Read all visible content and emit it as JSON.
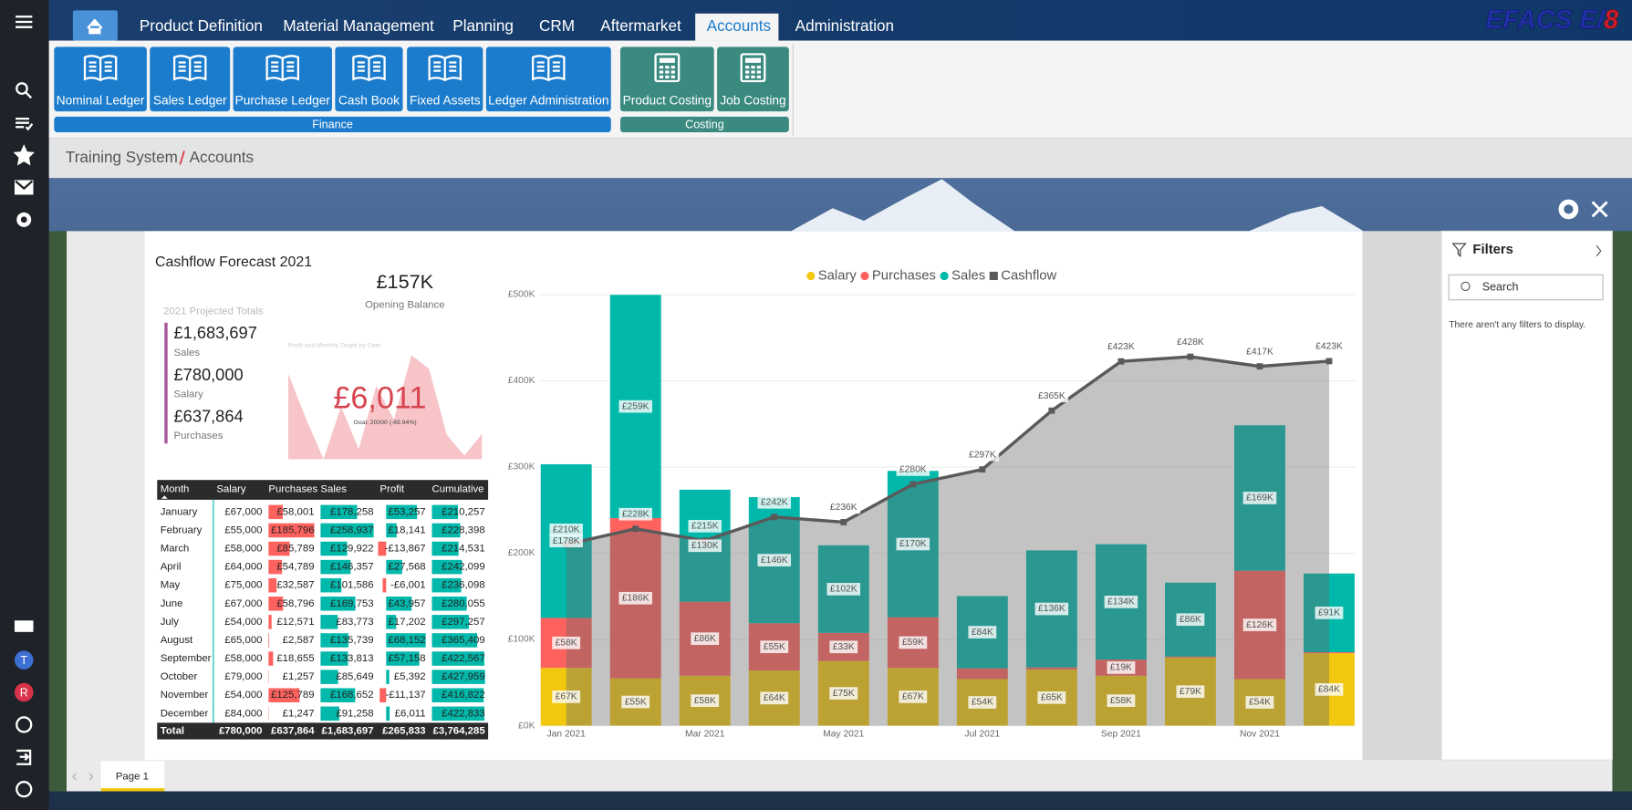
{
  "sidebar": {
    "badges": [
      "T",
      "R"
    ]
  },
  "nav": {
    "tabs": [
      "Product Definition",
      "Material Management",
      "Planning",
      "CRM",
      "Aftermarket",
      "Accounts",
      "Administration"
    ],
    "active_tab": 5
  },
  "logo": {
    "main": "EFACS E/",
    "accent": "8"
  },
  "ribbon": {
    "groups": [
      {
        "label": "Finance",
        "color": "#1b7bcc",
        "buttons": [
          "Nominal Ledger",
          "Sales Ledger",
          "Purchase Ledger",
          "Cash Book",
          "Fixed Assets",
          "Ledger Administration"
        ]
      },
      {
        "label": "Costing",
        "color": "#3a8a80",
        "buttons": [
          "Product Costing",
          "Job Costing"
        ]
      }
    ]
  },
  "breadcrumb": [
    "Training System",
    "Accounts"
  ],
  "report": {
    "title": "Cashflow Forecast 2021",
    "opening_balance": {
      "value": "£157K",
      "label": "Opening Balance"
    },
    "totals": {
      "title": "2021 Projected Totals",
      "items": [
        {
          "value": "£1,683,697",
          "label": "Sales"
        },
        {
          "value": "£780,000",
          "label": "Salary"
        },
        {
          "value": "£637,864",
          "label": "Purchases"
        }
      ]
    },
    "profit_chart": {
      "type": "area",
      "title": "Profit and Monthly Target by Date",
      "color": "#f7c4c8",
      "values": [
        53257,
        18141,
        -13867,
        27568,
        -6001,
        43957,
        17202,
        68152,
        57158,
        5392,
        -11137,
        6011
      ],
      "value_label": "£6,011",
      "goal": "Goal: 20000 (-69.94%)"
    },
    "table": {
      "header": [
        "Month",
        "Salary",
        "Purchases",
        "Sales",
        "Profit",
        "Cumulative"
      ],
      "rows": [
        [
          "January",
          "£67,000",
          "£58,001",
          "£178,258",
          "£53,257",
          "£210,257"
        ],
        [
          "February",
          "£55,000",
          "£185,796",
          "£258,937",
          "£18,141",
          "£228,398"
        ],
        [
          "March",
          "£58,000",
          "£85,789",
          "£129,922",
          "-£13,867",
          "£214,531"
        ],
        [
          "April",
          "£64,000",
          "£54,789",
          "£146,357",
          "£27,568",
          "£242,099"
        ],
        [
          "May",
          "£75,000",
          "£32,587",
          "£101,586",
          "-£6,001",
          "£236,098"
        ],
        [
          "June",
          "£67,000",
          "£58,796",
          "£169,753",
          "£43,957",
          "£280,055"
        ],
        [
          "July",
          "£54,000",
          "£12,571",
          "£83,773",
          "£17,202",
          "£297,257"
        ],
        [
          "August",
          "£65,000",
          "£2,587",
          "£135,739",
          "£68,152",
          "£365,409"
        ],
        [
          "September",
          "£58,000",
          "£18,655",
          "£133,813",
          "£57,158",
          "£422,567"
        ],
        [
          "October",
          "£79,000",
          "£1,257",
          "£85,649",
          "£5,392",
          "£427,959"
        ],
        [
          "November",
          "£54,000",
          "£125,789",
          "£168,652",
          "-£11,137",
          "£416,822"
        ],
        [
          "December",
          "£84,000",
          "£1,247",
          "£91,258",
          "£6,011",
          "£422,833"
        ]
      ],
      "total": [
        "Total",
        "£780,000",
        "£637,864",
        "£1,683,697",
        "£265,833",
        "£3,764,285"
      ]
    },
    "chart": {
      "type": "combo",
      "legend": "top",
      "categories": [
        "Jan 2021",
        null,
        "Mar 2021",
        null,
        "May 2021",
        null,
        "Jul 2021",
        null,
        "Sep 2021",
        null,
        "Nov 2021",
        null
      ],
      "ylim": [
        0,
        500000
      ],
      "yticks": [
        {
          "value": 0,
          "label": "£0K"
        },
        {
          "value": 100000,
          "label": "£100K"
        },
        {
          "value": 200000,
          "label": "£200K"
        },
        {
          "value": 300000,
          "label": "£300K"
        },
        {
          "value": 400000,
          "label": "£400K"
        },
        {
          "value": 500000,
          "label": "£500K"
        }
      ],
      "grid": true,
      "series": [
        {
          "name": "Salary",
          "kind": "bar",
          "color": "#f2c80f",
          "values": [
            67000,
            55000,
            58000,
            64000,
            75000,
            67000,
            54000,
            65000,
            58000,
            79000,
            54000,
            84000
          ],
          "value_labels": [
            "£67K",
            "£55K",
            "£58K",
            "£64K",
            "£75K",
            "£67K",
            "£54K",
            "£65K",
            "£58K",
            "£79K",
            "£54K",
            "£84K"
          ]
        },
        {
          "name": "Purchases",
          "kind": "bar",
          "color": "#fd625e",
          "values": [
            58001,
            185796,
            85789,
            54789,
            32587,
            58796,
            12571,
            2587,
            18655,
            1257,
            125789,
            1247
          ],
          "value_labels": [
            "£58K",
            "£186K",
            "£86K",
            "£55K",
            "£33K",
            "£59K",
            null,
            null,
            "£19K",
            null,
            "£126K",
            null
          ]
        },
        {
          "name": "Sales",
          "kind": "bar",
          "color": "#01b8aa",
          "values": [
            178258,
            258937,
            129922,
            146357,
            101586,
            169753,
            83773,
            135739,
            133813,
            85649,
            168652,
            91258
          ],
          "value_labels": [
            "£178K",
            "£259K",
            "£130K",
            "£146K",
            "£102K",
            "£170K",
            "£84K",
            "£136K",
            "£134K",
            "£86K",
            "£169K",
            "£91K"
          ]
        },
        {
          "name": "Cashflow",
          "kind": "line",
          "area": true,
          "color": "#5a5a5a",
          "values": [
            210257,
            228398,
            214531,
            242099,
            236098,
            280055,
            297257,
            365409,
            422567,
            427959,
            416822,
            422833
          ],
          "value_labels": [
            "£210K",
            "£228K",
            "£215K",
            "£242K",
            "£236K",
            "£280K",
            "£297K",
            "£365K",
            "£423K",
            "£428K",
            "£417K",
            "£423K"
          ]
        }
      ]
    }
  },
  "filters": {
    "title": "Filters",
    "search": "Search",
    "empty": "There aren't any filters to display."
  },
  "pages": [
    "Page 1"
  ]
}
